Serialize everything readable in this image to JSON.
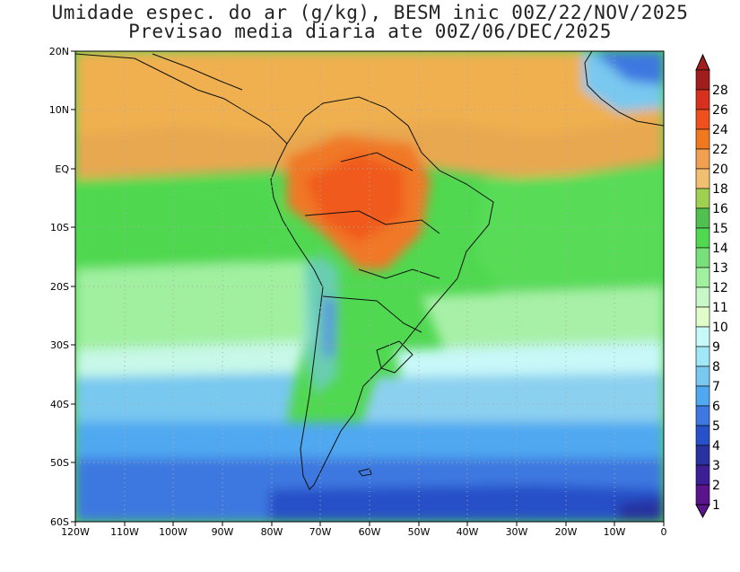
{
  "title": {
    "line1": "Umidade espec. do ar (g/kg), BESM inic 00Z/22/NOV/2025",
    "line2": "Previsao media diaria ate 00Z/06/DEC/2025"
  },
  "map": {
    "lon_ticks": [
      "120W",
      "110W",
      "100W",
      "90W",
      "80W",
      "70W",
      "60W",
      "50W",
      "40W",
      "30W",
      "20W",
      "10W",
      "0"
    ],
    "lat_ticks": [
      "20N",
      "10N",
      "EQ",
      "10S",
      "20S",
      "30S",
      "40S",
      "50S",
      "60S"
    ],
    "lon_range": [
      -120,
      0
    ],
    "lat_range": [
      -60,
      20
    ],
    "gridlines": "dotted",
    "field": "specific humidity (g/kg)"
  },
  "colorbar": {
    "levels": [
      "28",
      "26",
      "24",
      "22",
      "20",
      "18",
      "16",
      "15",
      "14",
      "13",
      "12",
      "11",
      "10",
      "9",
      "8",
      "7",
      "6",
      "5",
      "4",
      "3",
      "2",
      "1"
    ],
    "colors": [
      "#a01e1e",
      "#d8301e",
      "#f0501e",
      "#f0781e",
      "#f0a050",
      "#f0c070",
      "#a0d050",
      "#50c050",
      "#50d850",
      "#78e078",
      "#a0f0a0",
      "#c8f8c8",
      "#e0fcc8",
      "#c8f8f8",
      "#a0e8f8",
      "#78c8f0",
      "#50a8f0",
      "#3c78e0",
      "#2850c8",
      "#2832a0",
      "#3c1e96",
      "#5a148c"
    ]
  }
}
